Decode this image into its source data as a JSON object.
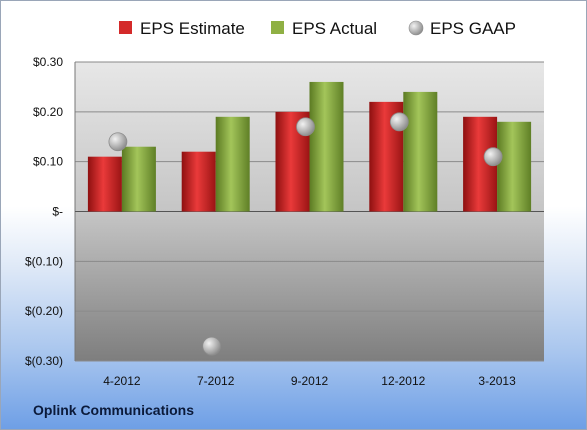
{
  "chart_data": {
    "type": "bar",
    "categories": [
      "4-2012",
      "7-2012",
      "9-2012",
      "12-2012",
      "3-2013"
    ],
    "series": [
      {
        "name": "EPS Estimate",
        "kind": "bar",
        "color": "#d42a2a",
        "values": [
          0.11,
          0.12,
          0.2,
          0.22,
          0.19
        ]
      },
      {
        "name": "EPS Actual",
        "kind": "bar",
        "color": "#8fb044",
        "values": [
          0.13,
          0.19,
          0.26,
          0.24,
          0.18
        ]
      },
      {
        "name": "EPS GAAP",
        "kind": "marker",
        "color": "#b9b9b9",
        "values": [
          0.14,
          -0.27,
          0.17,
          0.18,
          0.11
        ]
      }
    ],
    "y_ticks": [
      {
        "value": 0.3,
        "label": "$0.30"
      },
      {
        "value": 0.2,
        "label": "$0.20"
      },
      {
        "value": 0.1,
        "label": "$0.10"
      },
      {
        "value": 0.0,
        "label": "$-"
      },
      {
        "value": -0.1,
        "label": "$(0.10)"
      },
      {
        "value": -0.2,
        "label": "$(0.20)"
      },
      {
        "value": -0.3,
        "label": "$(0.30)"
      }
    ],
    "ylim": [
      -0.3,
      0.3
    ],
    "grid": true,
    "legend_position": "top"
  },
  "footer": {
    "company": "Oplink Communications"
  }
}
